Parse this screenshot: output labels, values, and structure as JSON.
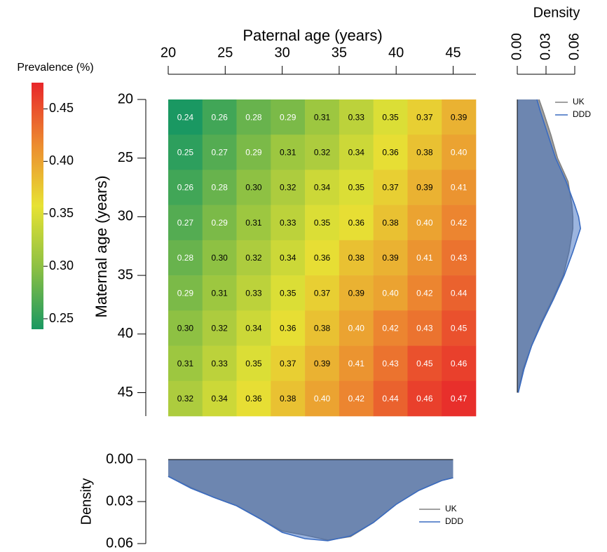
{
  "chart_data": [
    {
      "type": "heatmap",
      "xlabel": "Paternal age (years)",
      "ylabel": "Maternal age (years)",
      "xbins": [
        20,
        23,
        26,
        29,
        32,
        35,
        38,
        41,
        44,
        47
      ],
      "ybins": [
        20,
        23,
        26,
        29,
        32,
        35,
        38,
        41,
        44,
        47
      ],
      "xlim": [
        20,
        47
      ],
      "ylim": [
        20,
        47
      ],
      "xticks": [
        20,
        25,
        30,
        35,
        40,
        45
      ],
      "yticks": [
        20,
        25,
        30,
        35,
        40,
        45
      ],
      "values": [
        [
          0.24,
          0.26,
          0.28,
          0.29,
          0.31,
          0.33,
          0.35,
          0.37,
          0.39
        ],
        [
          0.25,
          0.27,
          0.29,
          0.31,
          0.32,
          0.34,
          0.36,
          0.38,
          0.4
        ],
        [
          0.26,
          0.28,
          0.3,
          0.32,
          0.34,
          0.35,
          0.37,
          0.39,
          0.41
        ],
        [
          0.27,
          0.29,
          0.31,
          0.33,
          0.35,
          0.36,
          0.38,
          0.4,
          0.42
        ],
        [
          0.28,
          0.3,
          0.32,
          0.34,
          0.36,
          0.38,
          0.39,
          0.41,
          0.43
        ],
        [
          0.29,
          0.31,
          0.33,
          0.35,
          0.37,
          0.39,
          0.4,
          0.42,
          0.44
        ],
        [
          0.3,
          0.32,
          0.34,
          0.36,
          0.38,
          0.4,
          0.42,
          0.43,
          0.45
        ],
        [
          0.31,
          0.33,
          0.35,
          0.37,
          0.39,
          0.41,
          0.43,
          0.45,
          0.46
        ],
        [
          0.32,
          0.34,
          0.36,
          0.38,
          0.4,
          0.42,
          0.44,
          0.46,
          0.47
        ]
      ],
      "value_labels": [
        [
          "0.24",
          "0.26",
          "0.28",
          "0.29",
          "0.31",
          "0.33",
          "0.35",
          "0.37",
          "0.39"
        ],
        [
          "0.25",
          "0.27",
          "0.29",
          "0.31",
          "0.32",
          "0.34",
          "0.36",
          "0.38",
          "0.40"
        ],
        [
          "0.26",
          "0.28",
          "0.30",
          "0.32",
          "0.34",
          "0.35",
          "0.37",
          "0.39",
          "0.41"
        ],
        [
          "0.27",
          "0.29",
          "0.31",
          "0.33",
          "0.35",
          "0.36",
          "0.38",
          "0.40",
          "0.42"
        ],
        [
          "0.28",
          "0.30",
          "0.32",
          "0.34",
          "0.36",
          "0.38",
          "0.39",
          "0.41",
          "0.43"
        ],
        [
          "0.29",
          "0.31",
          "0.33",
          "0.35",
          "0.37",
          "0.39",
          "0.40",
          "0.42",
          "0.44"
        ],
        [
          "0.30",
          "0.32",
          "0.34",
          "0.36",
          "0.38",
          "0.40",
          "0.42",
          "0.43",
          "0.45"
        ],
        [
          "0.31",
          "0.33",
          "0.35",
          "0.37",
          "0.39",
          "0.41",
          "0.43",
          "0.45",
          "0.46"
        ],
        [
          "0.32",
          "0.34",
          "0.36",
          "0.38",
          "0.40",
          "0.42",
          "0.44",
          "0.46",
          "0.47"
        ]
      ],
      "colorbar": {
        "title": "Prevalence (%)",
        "lim": [
          0.24,
          0.475
        ],
        "ticks": [
          0.25,
          {
            "value": 0.3,
            "label": "0.30"
          },
          0.35,
          {
            "value": 0.4,
            "label": "0.40"
          },
          0.45
        ],
        "colors": [
          "#1a9862",
          "#8cc043",
          "#e7e234",
          "#ec8b30",
          "#e8262a"
        ]
      }
    },
    {
      "type": "density",
      "orientation": "vertical",
      "title": "Density",
      "y": [
        20,
        21,
        23,
        25,
        27,
        29,
        30,
        31,
        33,
        35,
        37,
        39,
        41,
        43,
        45
      ],
      "xlim": [
        0,
        0.06
      ],
      "xticks": [
        {
          "value": 0,
          "label": "0.00"
        },
        {
          "value": 0.03,
          "label": "0.03"
        },
        {
          "value": 0.06,
          "label": "0.06"
        }
      ],
      "series": [
        {
          "name": "UK",
          "color": "#808080",
          "values": [
            0.0227,
            0.027,
            0.035,
            0.042,
            0.053,
            0.057,
            0.058,
            0.058,
            0.054,
            0.048,
            0.037,
            0.025,
            0.015,
            0.006,
            0.001
          ]
        },
        {
          "name": "DDD",
          "color": "#3a6bc0",
          "values": [
            0.0205,
            0.024,
            0.032,
            0.04,
            0.051,
            0.06,
            0.064,
            0.066,
            0.058,
            0.049,
            0.038,
            0.026,
            0.015,
            0.007,
            0.001
          ]
        }
      ],
      "legend": "top-right"
    },
    {
      "type": "density",
      "orientation": "horizontal",
      "ylabel": "Density",
      "x": [
        20,
        22,
        24,
        26,
        28,
        30,
        32,
        34,
        36,
        38,
        40,
        42,
        44,
        45
      ],
      "ylim": [
        0,
        0.06
      ],
      "yticks": [
        {
          "value": 0,
          "label": "0.00"
        },
        {
          "value": 0.03,
          "label": "0.03"
        },
        {
          "value": 0.06,
          "label": "0.06"
        }
      ],
      "series": [
        {
          "name": "UK",
          "color": "#808080",
          "values": [
            0.012,
            0.02,
            0.027,
            0.033,
            0.042,
            0.051,
            0.054,
            0.0575,
            0.055,
            0.045,
            0.032,
            0.022,
            0.015,
            0.013
          ]
        },
        {
          "name": "DDD",
          "color": "#3a6bc0",
          "values": [
            0.012,
            0.0205,
            0.027,
            0.033,
            0.042,
            0.052,
            0.0565,
            0.058,
            0.0545,
            0.045,
            0.032,
            0.022,
            0.015,
            0.013
          ]
        }
      ],
      "legend": "bottom-right"
    }
  ]
}
